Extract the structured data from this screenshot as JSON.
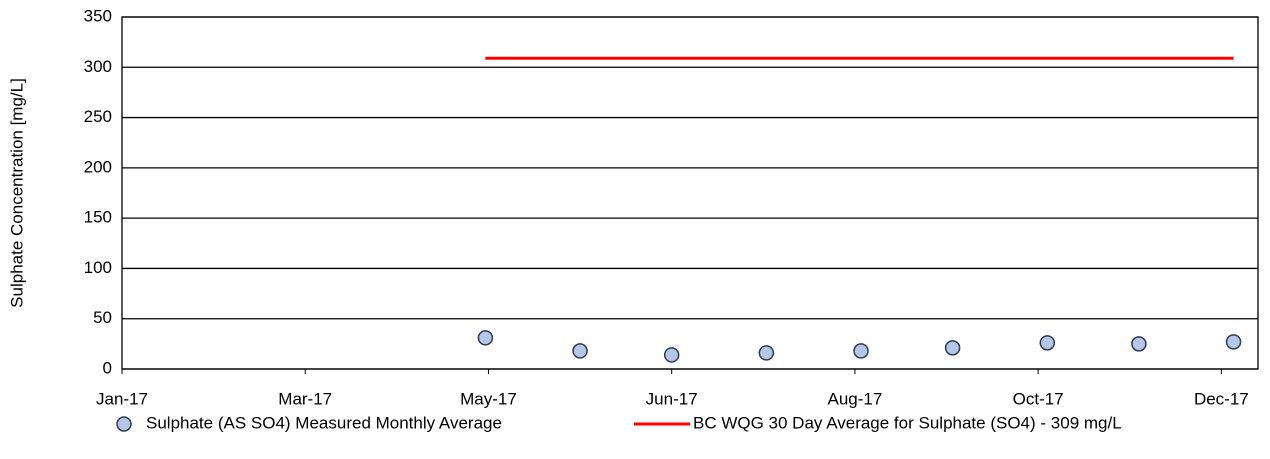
{
  "chart_data": {
    "type": "scatter",
    "y_label": "Sulphate Concentration [mg/L]",
    "xlim": [
      42736,
      43108
    ],
    "xticks": [
      {
        "value": 42736,
        "label": "Jan-17"
      },
      {
        "value": 42796,
        "label": "Mar-17"
      },
      {
        "value": 42856,
        "label": "May-17"
      },
      {
        "value": 42916,
        "label": "Jun-17"
      },
      {
        "value": 42976,
        "label": "Aug-17"
      },
      {
        "value": 43036,
        "label": "Oct-17"
      },
      {
        "value": 43096,
        "label": "Dec-17"
      }
    ],
    "ylim": [
      0,
      350
    ],
    "yticks": [
      0,
      50,
      100,
      150,
      200,
      250,
      300,
      350
    ],
    "grid": true,
    "legend": "bottom",
    "series": [
      {
        "name": "Sulphate (AS SO4) Measured Monthly Average",
        "kind": "markers",
        "color": "#b4c7e7",
        "x": [
          42855,
          42886,
          42916,
          42947,
          42978,
          43008,
          43039,
          43069,
          43100
        ],
        "values": [
          31,
          18,
          14,
          16,
          18,
          21,
          26,
          25,
          27
        ]
      },
      {
        "name": "BC WQG 30 Day Average for Sulphate (SO4) - 309 mg/L",
        "kind": "line",
        "color": "#ff0000",
        "x": [
          42855,
          43100
        ],
        "values": [
          309,
          309
        ]
      }
    ]
  }
}
